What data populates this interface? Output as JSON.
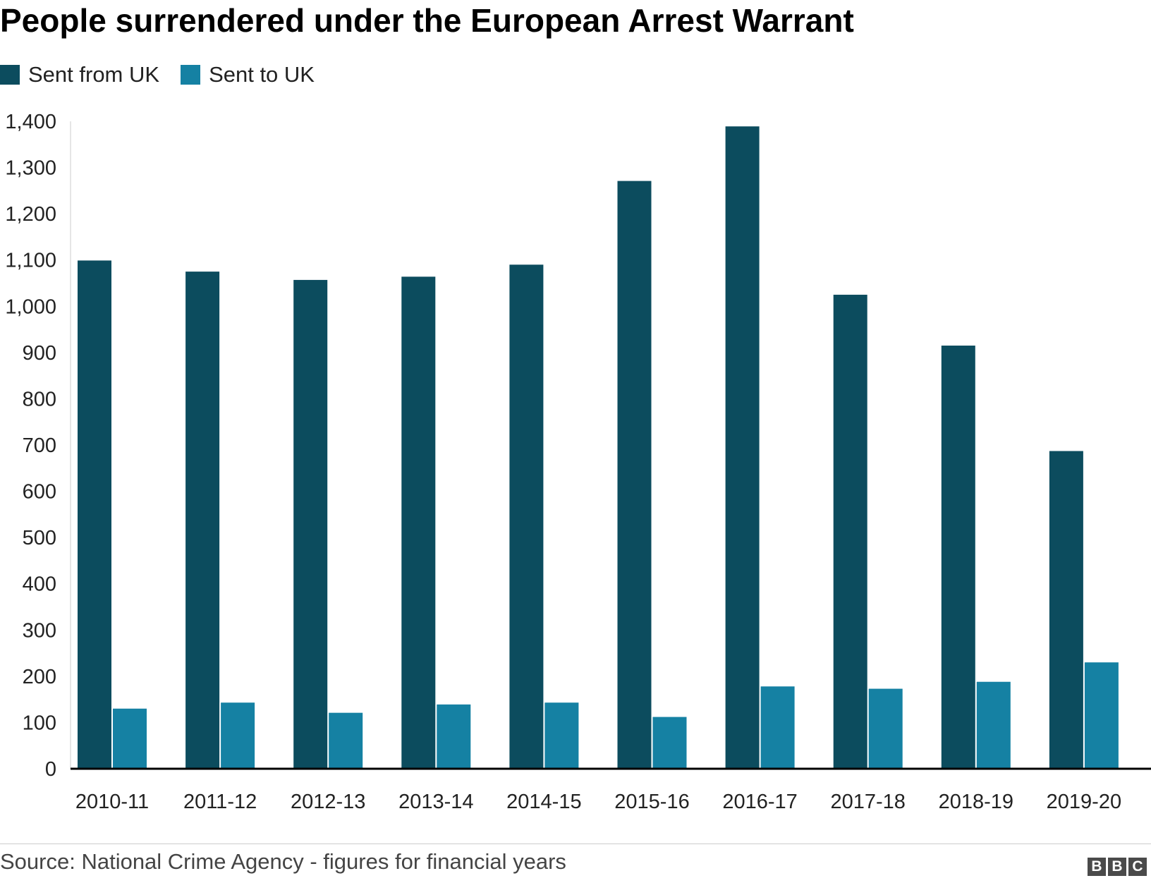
{
  "chart_data": {
    "type": "bar",
    "title": "People surrendered under the European Arrest Warrant",
    "categories": [
      "2010-11",
      "2011-12",
      "2012-13",
      "2013-14",
      "2014-15",
      "2015-16",
      "2016-17",
      "2017-18",
      "2018-19",
      "2019-20"
    ],
    "series": [
      {
        "name": "Sent from UK",
        "color": "#0c4c5e",
        "values": [
          1099,
          1075,
          1057,
          1064,
          1090,
          1271,
          1389,
          1025,
          915,
          687
        ]
      },
      {
        "name": "Sent to UK",
        "color": "#1581a3",
        "values": [
          130,
          143,
          121,
          139,
          143,
          112,
          178,
          173,
          188,
          230
        ]
      }
    ],
    "yticks": [
      "0",
      "100",
      "200",
      "300",
      "400",
      "500",
      "600",
      "700",
      "800",
      "900",
      "1,000",
      "1,100",
      "1,200",
      "1,300",
      "1,400"
    ],
    "ylim": [
      0,
      1400
    ],
    "grid": false,
    "legend_position": "top-left",
    "xlabel": "",
    "ylabel": ""
  },
  "footer": {
    "source": "Source: National Crime Agency - figures for financial years",
    "logo_letters": [
      "B",
      "B",
      "C"
    ]
  }
}
